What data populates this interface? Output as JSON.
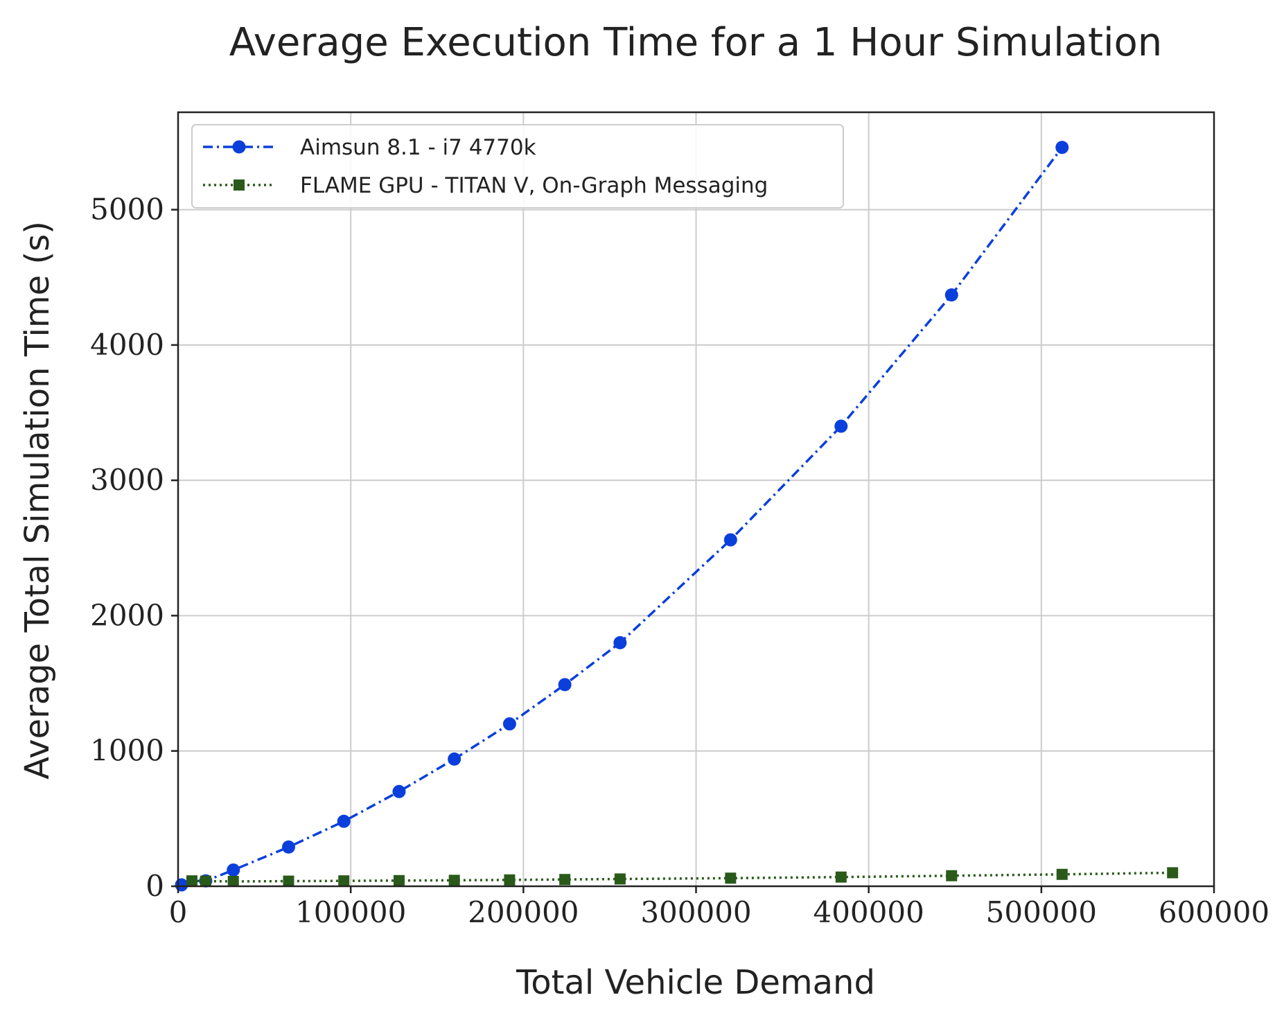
{
  "chart_data": {
    "type": "line",
    "title": "Average Execution Time for a 1 Hour Simulation",
    "xlabel": "Total Vehicle Demand",
    "ylabel": "Average Total Simulation Time (s)",
    "xlim": [
      0,
      600000
    ],
    "ylim": [
      0,
      5720
    ],
    "xticks": [
      0,
      100000,
      200000,
      300000,
      400000,
      500000,
      600000
    ],
    "yticks": [
      0,
      1000,
      2000,
      3000,
      4000,
      5000
    ],
    "xtick_labels": [
      "0",
      "100000",
      "200000",
      "300000",
      "400000",
      "500000",
      "600000"
    ],
    "ytick_labels": [
      "0",
      "1000",
      "2000",
      "3000",
      "4000",
      "5000"
    ],
    "grid": true,
    "legend_position": "top-left",
    "series": [
      {
        "name": "Aimsun 8.1 - i7 4770k",
        "color": "#0b3fdc",
        "linestyle": "dashdot",
        "marker": "circle",
        "x": [
          2000,
          16000,
          32000,
          64000,
          96000,
          128000,
          160000,
          192000,
          224000,
          256000,
          320000,
          384000,
          448000,
          512000
        ],
        "y": [
          10,
          40,
          120,
          290,
          480,
          700,
          940,
          1200,
          1490,
          1800,
          2560,
          3400,
          4370,
          5460
        ]
      },
      {
        "name": "FLAME GPU - TITAN V, On-Graph Messaging",
        "color": "#2a5a1a",
        "linestyle": "dotted",
        "marker": "square",
        "x": [
          8000,
          16000,
          32000,
          64000,
          96000,
          128000,
          160000,
          192000,
          224000,
          256000,
          320000,
          384000,
          448000,
          512000,
          576000
        ],
        "y": [
          40,
          38,
          36,
          38,
          40,
          42,
          44,
          47,
          50,
          54,
          60,
          68,
          78,
          88,
          100
        ]
      }
    ]
  }
}
